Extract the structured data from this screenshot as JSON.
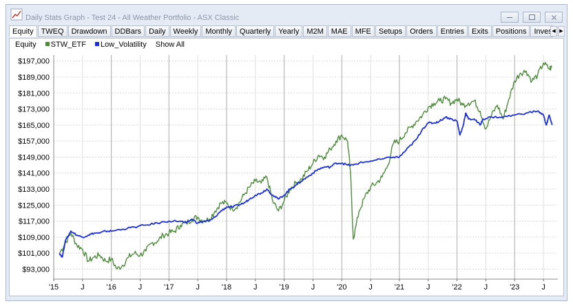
{
  "window": {
    "title": "Daily Stats Graph - Test 24 - All Weather Portfolio - ASX Classic",
    "icon": "chart-graph-icon"
  },
  "tabs": [
    "Equity",
    "TWEQ",
    "Drawdown",
    "DDBars",
    "Daily",
    "Weekly",
    "Monthly",
    "Quarterly",
    "Yearly",
    "M2M",
    "MAE",
    "MFE",
    "Setups",
    "Orders",
    "Entries",
    "Exits",
    "Positions",
    "Inves"
  ],
  "active_tab": "Equity",
  "legend": {
    "label": "Equity",
    "series": [
      {
        "name": "STW_ETF",
        "color": "#4c8a3a"
      },
      {
        "name": "Low_Volatility",
        "color": "#1a2fd6"
      }
    ],
    "show_all": "Show All"
  },
  "chart_data": {
    "type": "line",
    "y_ticks": [
      "$197,000",
      "$189,000",
      "$181,000",
      "$173,000",
      "$165,000",
      "$157,000",
      "$149,000",
      "$141,000",
      "$133,000",
      "$125,000",
      "$117,000",
      "$109,000",
      "$101,000",
      "$93,000"
    ],
    "x_ticks": [
      "'15",
      "J",
      "'16",
      "J",
      "'17",
      "J",
      "'18",
      "J",
      "'19",
      "J",
      "'20",
      "J",
      "'21",
      "J",
      "'22",
      "J",
      "'23",
      "J"
    ],
    "ylim": [
      88000,
      200000
    ],
    "xlim": [
      2015.0,
      2023.75
    ],
    "grid": true,
    "series": [
      {
        "name": "STW_ETF",
        "color": "#4c8a3a",
        "points": [
          [
            2015.1,
            101000
          ],
          [
            2015.2,
            106000
          ],
          [
            2015.3,
            111000
          ],
          [
            2015.4,
            105000
          ],
          [
            2015.5,
            103000
          ],
          [
            2015.6,
            97000
          ],
          [
            2015.7,
            99000
          ],
          [
            2015.8,
            100000
          ],
          [
            2015.9,
            97000
          ],
          [
            2016.0,
            98000
          ],
          [
            2016.1,
            93000
          ],
          [
            2016.2,
            95000
          ],
          [
            2016.3,
            99000
          ],
          [
            2016.4,
            101000
          ],
          [
            2016.5,
            100000
          ],
          [
            2016.6,
            102000
          ],
          [
            2016.7,
            106000
          ],
          [
            2016.8,
            107000
          ],
          [
            2016.9,
            110000
          ],
          [
            2017.0,
            111000
          ],
          [
            2017.1,
            112000
          ],
          [
            2017.2,
            115000
          ],
          [
            2017.3,
            116000
          ],
          [
            2017.4,
            118000
          ],
          [
            2017.5,
            119000
          ],
          [
            2017.6,
            117000
          ],
          [
            2017.7,
            118000
          ],
          [
            2017.8,
            122000
          ],
          [
            2017.9,
            126000
          ],
          [
            2018.0,
            126000
          ],
          [
            2018.1,
            123000
          ],
          [
            2018.2,
            125000
          ],
          [
            2018.3,
            130000
          ],
          [
            2018.4,
            134000
          ],
          [
            2018.5,
            137000
          ],
          [
            2018.6,
            136000
          ],
          [
            2018.7,
            139000
          ],
          [
            2018.8,
            127000
          ],
          [
            2018.9,
            122000
          ],
          [
            2019.0,
            127000
          ],
          [
            2019.1,
            133000
          ],
          [
            2019.2,
            136000
          ],
          [
            2019.3,
            138000
          ],
          [
            2019.4,
            142000
          ],
          [
            2019.5,
            146000
          ],
          [
            2019.6,
            150000
          ],
          [
            2019.7,
            149000
          ],
          [
            2019.8,
            153000
          ],
          [
            2019.9,
            157000
          ],
          [
            2020.0,
            160000
          ],
          [
            2020.1,
            157000
          ],
          [
            2020.15,
            142000
          ],
          [
            2020.2,
            108000
          ],
          [
            2020.3,
            122000
          ],
          [
            2020.4,
            129000
          ],
          [
            2020.5,
            134000
          ],
          [
            2020.6,
            136000
          ],
          [
            2020.7,
            139000
          ],
          [
            2020.8,
            145000
          ],
          [
            2020.9,
            156000
          ],
          [
            2021.0,
            157000
          ],
          [
            2021.1,
            161000
          ],
          [
            2021.2,
            164000
          ],
          [
            2021.3,
            167000
          ],
          [
            2021.4,
            170000
          ],
          [
            2021.5,
            174000
          ],
          [
            2021.6,
            176000
          ],
          [
            2021.7,
            177000
          ],
          [
            2021.8,
            178000
          ],
          [
            2021.9,
            176000
          ],
          [
            2022.0,
            178000
          ],
          [
            2022.1,
            175000
          ],
          [
            2022.2,
            176000
          ],
          [
            2022.3,
            177000
          ],
          [
            2022.4,
            172000
          ],
          [
            2022.5,
            163000
          ],
          [
            2022.6,
            170000
          ],
          [
            2022.7,
            175000
          ],
          [
            2022.8,
            168000
          ],
          [
            2022.9,
            178000
          ],
          [
            2023.0,
            187000
          ],
          [
            2023.1,
            191000
          ],
          [
            2023.2,
            192000
          ],
          [
            2023.3,
            187000
          ],
          [
            2023.4,
            190000
          ],
          [
            2023.5,
            196000
          ],
          [
            2023.6,
            193000
          ],
          [
            2023.65,
            194000
          ]
        ]
      },
      {
        "name": "Low_Volatility",
        "color": "#1a2fd6",
        "points": [
          [
            2015.1,
            101000
          ],
          [
            2015.15,
            99000
          ],
          [
            2015.2,
            107000
          ],
          [
            2015.3,
            112000
          ],
          [
            2015.4,
            110000
          ],
          [
            2015.5,
            109000
          ],
          [
            2015.6,
            110000
          ],
          [
            2015.7,
            111000
          ],
          [
            2015.8,
            111000
          ],
          [
            2015.9,
            112000
          ],
          [
            2016.0,
            112000
          ],
          [
            2016.2,
            113000
          ],
          [
            2016.4,
            114000
          ],
          [
            2016.6,
            115000
          ],
          [
            2016.8,
            116000
          ],
          [
            2017.0,
            117000
          ],
          [
            2017.2,
            117000
          ],
          [
            2017.3,
            116000
          ],
          [
            2017.4,
            118000
          ],
          [
            2017.5,
            116000
          ],
          [
            2017.6,
            117000
          ],
          [
            2017.7,
            117000
          ],
          [
            2017.8,
            119000
          ],
          [
            2017.9,
            122000
          ],
          [
            2018.0,
            124000
          ],
          [
            2018.1,
            124000
          ],
          [
            2018.2,
            125000
          ],
          [
            2018.3,
            126000
          ],
          [
            2018.4,
            128000
          ],
          [
            2018.5,
            130000
          ],
          [
            2018.6,
            131000
          ],
          [
            2018.7,
            133000
          ],
          [
            2018.8,
            130000
          ],
          [
            2018.9,
            128000
          ],
          [
            2019.0,
            130000
          ],
          [
            2019.1,
            133000
          ],
          [
            2019.2,
            135000
          ],
          [
            2019.3,
            137000
          ],
          [
            2019.4,
            139000
          ],
          [
            2019.5,
            141000
          ],
          [
            2019.6,
            143000
          ],
          [
            2019.7,
            144000
          ],
          [
            2019.8,
            144000
          ],
          [
            2019.9,
            146000
          ],
          [
            2020.0,
            146000
          ],
          [
            2020.1,
            145000
          ],
          [
            2020.2,
            145000
          ],
          [
            2020.3,
            146000
          ],
          [
            2020.5,
            147000
          ],
          [
            2020.7,
            148000
          ],
          [
            2020.9,
            149000
          ],
          [
            2021.0,
            149000
          ],
          [
            2021.1,
            152000
          ],
          [
            2021.2,
            155000
          ],
          [
            2021.3,
            158000
          ],
          [
            2021.4,
            163000
          ],
          [
            2021.5,
            166000
          ],
          [
            2021.6,
            166000
          ],
          [
            2021.7,
            167000
          ],
          [
            2021.8,
            169000
          ],
          [
            2021.9,
            168000
          ],
          [
            2022.0,
            167000
          ],
          [
            2022.05,
            160000
          ],
          [
            2022.1,
            164000
          ],
          [
            2022.15,
            171000
          ],
          [
            2022.2,
            168000
          ],
          [
            2022.3,
            168000
          ],
          [
            2022.4,
            165000
          ],
          [
            2022.45,
            168000
          ],
          [
            2022.6,
            169000
          ],
          [
            2022.8,
            169000
          ],
          [
            2023.0,
            170000
          ],
          [
            2023.2,
            171000
          ],
          [
            2023.4,
            172000
          ],
          [
            2023.5,
            170000
          ],
          [
            2023.55,
            165000
          ],
          [
            2023.6,
            170000
          ],
          [
            2023.65,
            165000
          ]
        ]
      }
    ]
  }
}
